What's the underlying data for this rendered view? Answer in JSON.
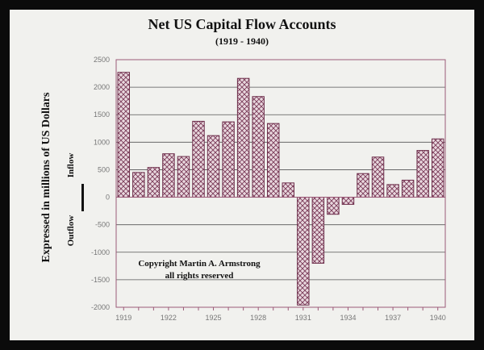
{
  "chart_data": {
    "type": "bar",
    "title": "Net US Capital Flow Accounts",
    "subtitle": "(1919 - 1940)",
    "ylabel": "Expressed in millions of US Dollars",
    "inflow_label": "Inflow",
    "outflow_label": "Outflow",
    "annotation": [
      "Copyright Martin A. Armstrong",
      "all rights reserved"
    ],
    "categories": [
      "1919",
      "1920",
      "1921",
      "1922",
      "1923",
      "1924",
      "1925",
      "1926",
      "1927",
      "1928",
      "1929",
      "1930",
      "1931",
      "1932",
      "1933",
      "1934",
      "1935",
      "1936",
      "1937",
      "1938",
      "1939",
      "1940"
    ],
    "values": [
      2270,
      450,
      540,
      790,
      740,
      1380,
      1120,
      1370,
      2160,
      1830,
      1340,
      260,
      -1960,
      -1200,
      -310,
      -130,
      430,
      730,
      230,
      310,
      850,
      1060
    ],
    "xtick_labels": [
      "1919",
      "1922",
      "1925",
      "1928",
      "1931",
      "1934",
      "1937",
      "1940"
    ],
    "ytick_labels": [
      "2500",
      "2000",
      "1500",
      "1000",
      "500",
      "0",
      "-500",
      "-1000",
      "-1500",
      "-2000"
    ],
    "ylim": [
      -2000,
      2500
    ],
    "grid": true,
    "colors": {
      "bar_stroke": "#6e2f4c",
      "bar_hatch": "#7a3a58",
      "bar_fill": "#e9d8de",
      "axis": "#9c5a78",
      "grid": "#555555"
    }
  }
}
